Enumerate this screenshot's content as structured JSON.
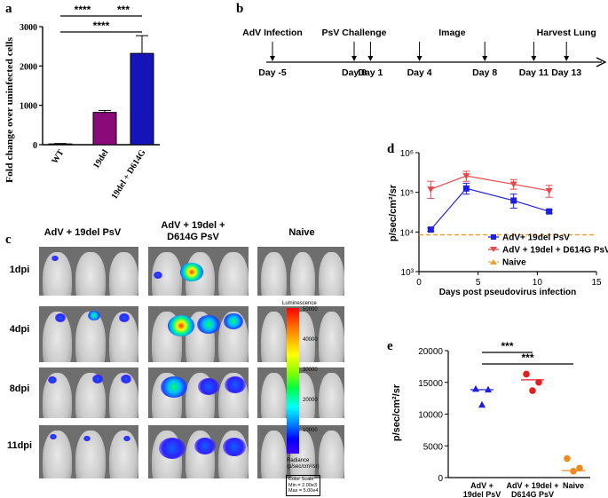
{
  "panels": {
    "a": {
      "letter": "a"
    },
    "b": {
      "letter": "b"
    },
    "c": {
      "letter": "c"
    },
    "d": {
      "letter": "d"
    },
    "e": {
      "letter": "e"
    }
  },
  "chart_data": [
    {
      "id": "a",
      "type": "bar",
      "categories": [
        "WT",
        "19del",
        "19del + D614G"
      ],
      "values": [
        20,
        820,
        2320
      ],
      "errors": [
        10,
        50,
        450
      ],
      "colors": [
        "#ffffff",
        "#8b0a7a",
        "#1414b8"
      ],
      "ylabel": "Fold change over uninfected cells",
      "ylim": [
        0,
        3000
      ],
      "yticks": [
        "0",
        "1000",
        "2000",
        "3000"
      ],
      "significance": [
        {
          "from": 0,
          "to": 1,
          "label": "****"
        },
        {
          "from": 1,
          "to": 2,
          "label": "***"
        },
        {
          "from": 0,
          "to": 2,
          "label": "****"
        }
      ]
    },
    {
      "id": "d",
      "type": "line",
      "xlabel": "Days post pseudovirus infection",
      "ylabel": "p/sec/cm²/sr",
      "xlim": [
        0,
        15
      ],
      "xticks": [
        "0",
        "5",
        "10",
        "15"
      ],
      "ylim": [
        1000,
        1000000
      ],
      "yscale": "log",
      "yticks": [
        "10³",
        "10⁴",
        "10⁵",
        "10⁶"
      ],
      "legend": "bottom-right",
      "series": [
        {
          "name": "AdV+ 19del PsV",
          "color": "#1f1fe0",
          "marker": "square",
          "x": [
            1,
            4,
            8,
            11
          ],
          "y": [
            11500,
            125000,
            62000,
            33000
          ],
          "err_lo": [
            10500,
            90000,
            40000,
            30000
          ],
          "err_hi": [
            12500,
            170000,
            90000,
            36000
          ]
        },
        {
          "name": "AdV + 19del + D614G PsV",
          "color": "#e84848",
          "marker": "triangle-down",
          "x": [
            1,
            4,
            8,
            11
          ],
          "y": [
            120000,
            260000,
            160000,
            110000
          ],
          "err_lo": [
            70000,
            190000,
            120000,
            75000
          ],
          "err_hi": [
            190000,
            340000,
            210000,
            150000
          ]
        },
        {
          "name": "Naive",
          "color": "#f0a030",
          "marker": "triangle",
          "dashed": true,
          "x": [
            0,
            15
          ],
          "y": [
            8500,
            8500
          ]
        }
      ]
    },
    {
      "id": "e",
      "type": "scatter",
      "ylabel": "p/sec/cm²/sr",
      "ylim": [
        0,
        20000
      ],
      "yticks": [
        "0",
        "5000",
        "10000",
        "15000",
        "20000"
      ],
      "categories": [
        "AdV +\n19del PsV",
        "AdV + 19del +\nD614G PsV",
        "Naive"
      ],
      "category_lines": [
        [
          "AdV +",
          "19del PsV"
        ],
        [
          "AdV + 19del +",
          "D614G PsV"
        ],
        [
          "Naive"
        ]
      ],
      "groups": [
        {
          "color": "#1f1fe0",
          "marker": "triangle",
          "points": [
            14000,
            13900,
            11500
          ],
          "mean": 13850
        },
        {
          "color": "#e02020",
          "marker": "circle",
          "points": [
            16300,
            15000,
            13700
          ],
          "mean": 15400
        },
        {
          "color": "#f08a20",
          "marker": "circle",
          "points": [
            3000,
            1500,
            1000
          ],
          "mean": 1100
        }
      ],
      "significance": [
        {
          "from": 0,
          "to": 1,
          "label": "***"
        },
        {
          "from": 0,
          "to": 2,
          "label": "***"
        }
      ]
    }
  ],
  "timeline": {
    "events_top": [
      {
        "label": "AdV Infection",
        "day": -5
      },
      {
        "label": "PsV Challenge",
        "day": 0
      },
      {
        "label": "Image",
        "day": 6
      },
      {
        "label": "Harvest Lung",
        "day": 13
      }
    ],
    "days": [
      {
        "label": "Day -5",
        "day": -5
      },
      {
        "label": "Day 0",
        "day": 0
      },
      {
        "label": "Day 1",
        "day": 1
      },
      {
        "label": "Day 4",
        "day": 4
      },
      {
        "label": "Day 8",
        "day": 8
      },
      {
        "label": "Day 11",
        "day": 11
      },
      {
        "label": "Day 13",
        "day": 13
      }
    ]
  },
  "imaging": {
    "columns": [
      "AdV + 19del PsV",
      "AdV + 19del +\nD614G PsV",
      "Naive"
    ],
    "col1": "AdV + 19del PsV",
    "col2_line1": "AdV + 19del +",
    "col2_line2": "D614G PsV",
    "col3": "Naive",
    "rows": [
      "1dpi",
      "4dpi",
      "8dpi",
      "11dpi"
    ],
    "scale_title": "Luminescence",
    "scale_ticks": [
      "50000",
      "40000",
      "30000",
      "20000",
      "10000"
    ],
    "radiance_label": "Radiance",
    "radiance_unit": "(p/sec/cm²/sr)",
    "color_scale_title": "Color Scale",
    "color_scale_min": "Min = 2.00e3",
    "color_scale_max": "Max = 5.00e4"
  }
}
